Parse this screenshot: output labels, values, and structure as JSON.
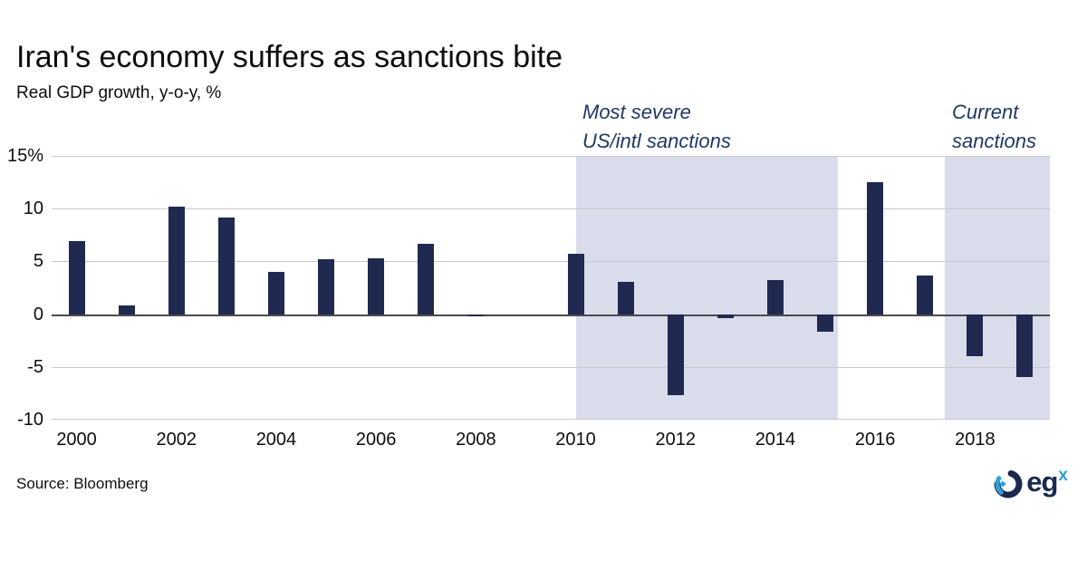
{
  "header": {
    "title": "Iran's economy suffers as sanctions bite",
    "subtitle": "Real GDP growth, y-o-y, %"
  },
  "chart_data": {
    "type": "bar",
    "title": "Iran's economy suffers as sanctions bite",
    "subtitle": "Real GDP growth, y-o-y, %",
    "xlabel": "",
    "ylabel": "Real GDP growth, y-o-y, %",
    "ylim": [
      -10,
      15
    ],
    "grid": true,
    "legend": "none",
    "categories": [
      2000,
      2001,
      2002,
      2003,
      2004,
      2005,
      2006,
      2007,
      2008,
      2009,
      2010,
      2011,
      2012,
      2013,
      2014,
      2015,
      2016,
      2017,
      2018,
      2019
    ],
    "values": [
      6.9,
      0.8,
      10.2,
      9.2,
      4.0,
      5.2,
      5.3,
      6.7,
      -0.2,
      0.0,
      5.7,
      3.1,
      -7.7,
      -0.4,
      3.2,
      -1.7,
      12.5,
      3.7,
      -4.0,
      -6.0
    ],
    "yticks": [
      {
        "label": "15%",
        "value": 15
      },
      {
        "label": "10",
        "value": 10
      },
      {
        "label": "5",
        "value": 5
      },
      {
        "label": "0",
        "value": 0
      },
      {
        "label": "-5",
        "value": -5
      },
      {
        "label": "-10",
        "value": -10
      }
    ],
    "xticks": [
      {
        "label": "2000",
        "year": 2000
      },
      {
        "label": "2002",
        "year": 2002
      },
      {
        "label": "2004",
        "year": 2004
      },
      {
        "label": "2006",
        "year": 2006
      },
      {
        "label": "2008",
        "year": 2008
      },
      {
        "label": "2010",
        "year": 2010
      },
      {
        "label": "2012",
        "year": 2012
      },
      {
        "label": "2014",
        "year": 2014
      },
      {
        "label": "2016",
        "year": 2016
      },
      {
        "label": "2018",
        "year": 2018
      }
    ],
    "bands": [
      {
        "from_year": 2010.0,
        "to_year": 2015.25,
        "annotation": [
          "Most severe",
          "US/intl sanctions"
        ]
      },
      {
        "from_year": 2017.4,
        "to_year": 2019.5,
        "annotation": [
          "Current",
          "sanctions"
        ]
      }
    ],
    "colors": {
      "bar": "#202950",
      "band": "#d9dceb",
      "gridline": "#c8cacd",
      "zero_line": "#4a4b4d",
      "annotation_text": "#1f3864"
    }
  },
  "footer": {
    "source": "Source: Bloomberg",
    "logo": {
      "text": "eg",
      "superscript": "x",
      "icon": "egx-ring-icon",
      "navy": "#1b2a4c",
      "blue": "#2e9fd9"
    }
  }
}
